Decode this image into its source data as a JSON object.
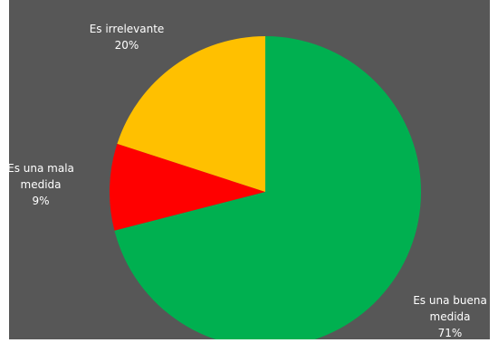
{
  "chart_data": {
    "type": "pie",
    "start_angle_deg": 0,
    "direction": "clockwise",
    "slices": [
      {
        "label_lines": [
          "Es una buena",
          "medida"
        ],
        "percent_label": "71%",
        "value": 71,
        "color": "#00b050"
      },
      {
        "label_lines": [
          "Es una mala",
          "medida"
        ],
        "percent_label": "9%",
        "value": 9,
        "color": "#ff0000"
      },
      {
        "label_lines": [
          "Es irrelevante"
        ],
        "percent_label": "20%",
        "value": 20,
        "color": "#ffc000"
      }
    ],
    "background_color": "#575757",
    "legend": "none"
  }
}
